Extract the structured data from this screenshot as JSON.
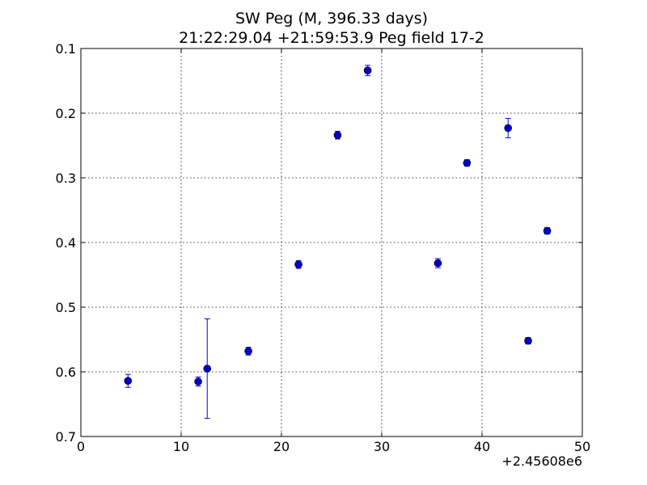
{
  "chart_data": {
    "type": "scatter",
    "title_line1": "SW Peg (M, 396.33 days)",
    "title_line2": "21:22:29.04 +21:59:53.9 Peg field 17-2",
    "x_offset_label": "+2.45608e6",
    "xlim": [
      0,
      50
    ],
    "ylim": [
      0.1,
      0.7
    ],
    "y_inverted": true,
    "x_ticks": [
      0,
      10,
      20,
      30,
      40,
      50
    ],
    "x_tick_labels": [
      "0",
      "10",
      "20",
      "30",
      "40",
      "50"
    ],
    "y_ticks": [
      0.1,
      0.2,
      0.3,
      0.4,
      0.5,
      0.6,
      0.7
    ],
    "y_tick_labels": [
      "0.1",
      "0.2",
      "0.3",
      "0.4",
      "0.5",
      "0.6",
      "0.7"
    ],
    "grid": true,
    "marker_color": "#0000cc",
    "errorbar_color": "#0000ff",
    "points": [
      {
        "x": 4.7,
        "y": 0.614,
        "err": 0.01
      },
      {
        "x": 11.7,
        "y": 0.615,
        "err": 0.007
      },
      {
        "x": 12.6,
        "y": 0.595,
        "err": 0.077
      },
      {
        "x": 16.7,
        "y": 0.568,
        "err": 0.006
      },
      {
        "x": 21.7,
        "y": 0.434,
        "err": 0.006
      },
      {
        "x": 25.6,
        "y": 0.234,
        "err": 0.006
      },
      {
        "x": 28.6,
        "y": 0.134,
        "err": 0.008
      },
      {
        "x": 35.6,
        "y": 0.432,
        "err": 0.007
      },
      {
        "x": 38.5,
        "y": 0.277,
        "err": 0.005
      },
      {
        "x": 42.6,
        "y": 0.223,
        "err": 0.015
      },
      {
        "x": 44.6,
        "y": 0.552,
        "err": 0.005
      },
      {
        "x": 46.5,
        "y": 0.382,
        "err": 0.005
      }
    ]
  }
}
